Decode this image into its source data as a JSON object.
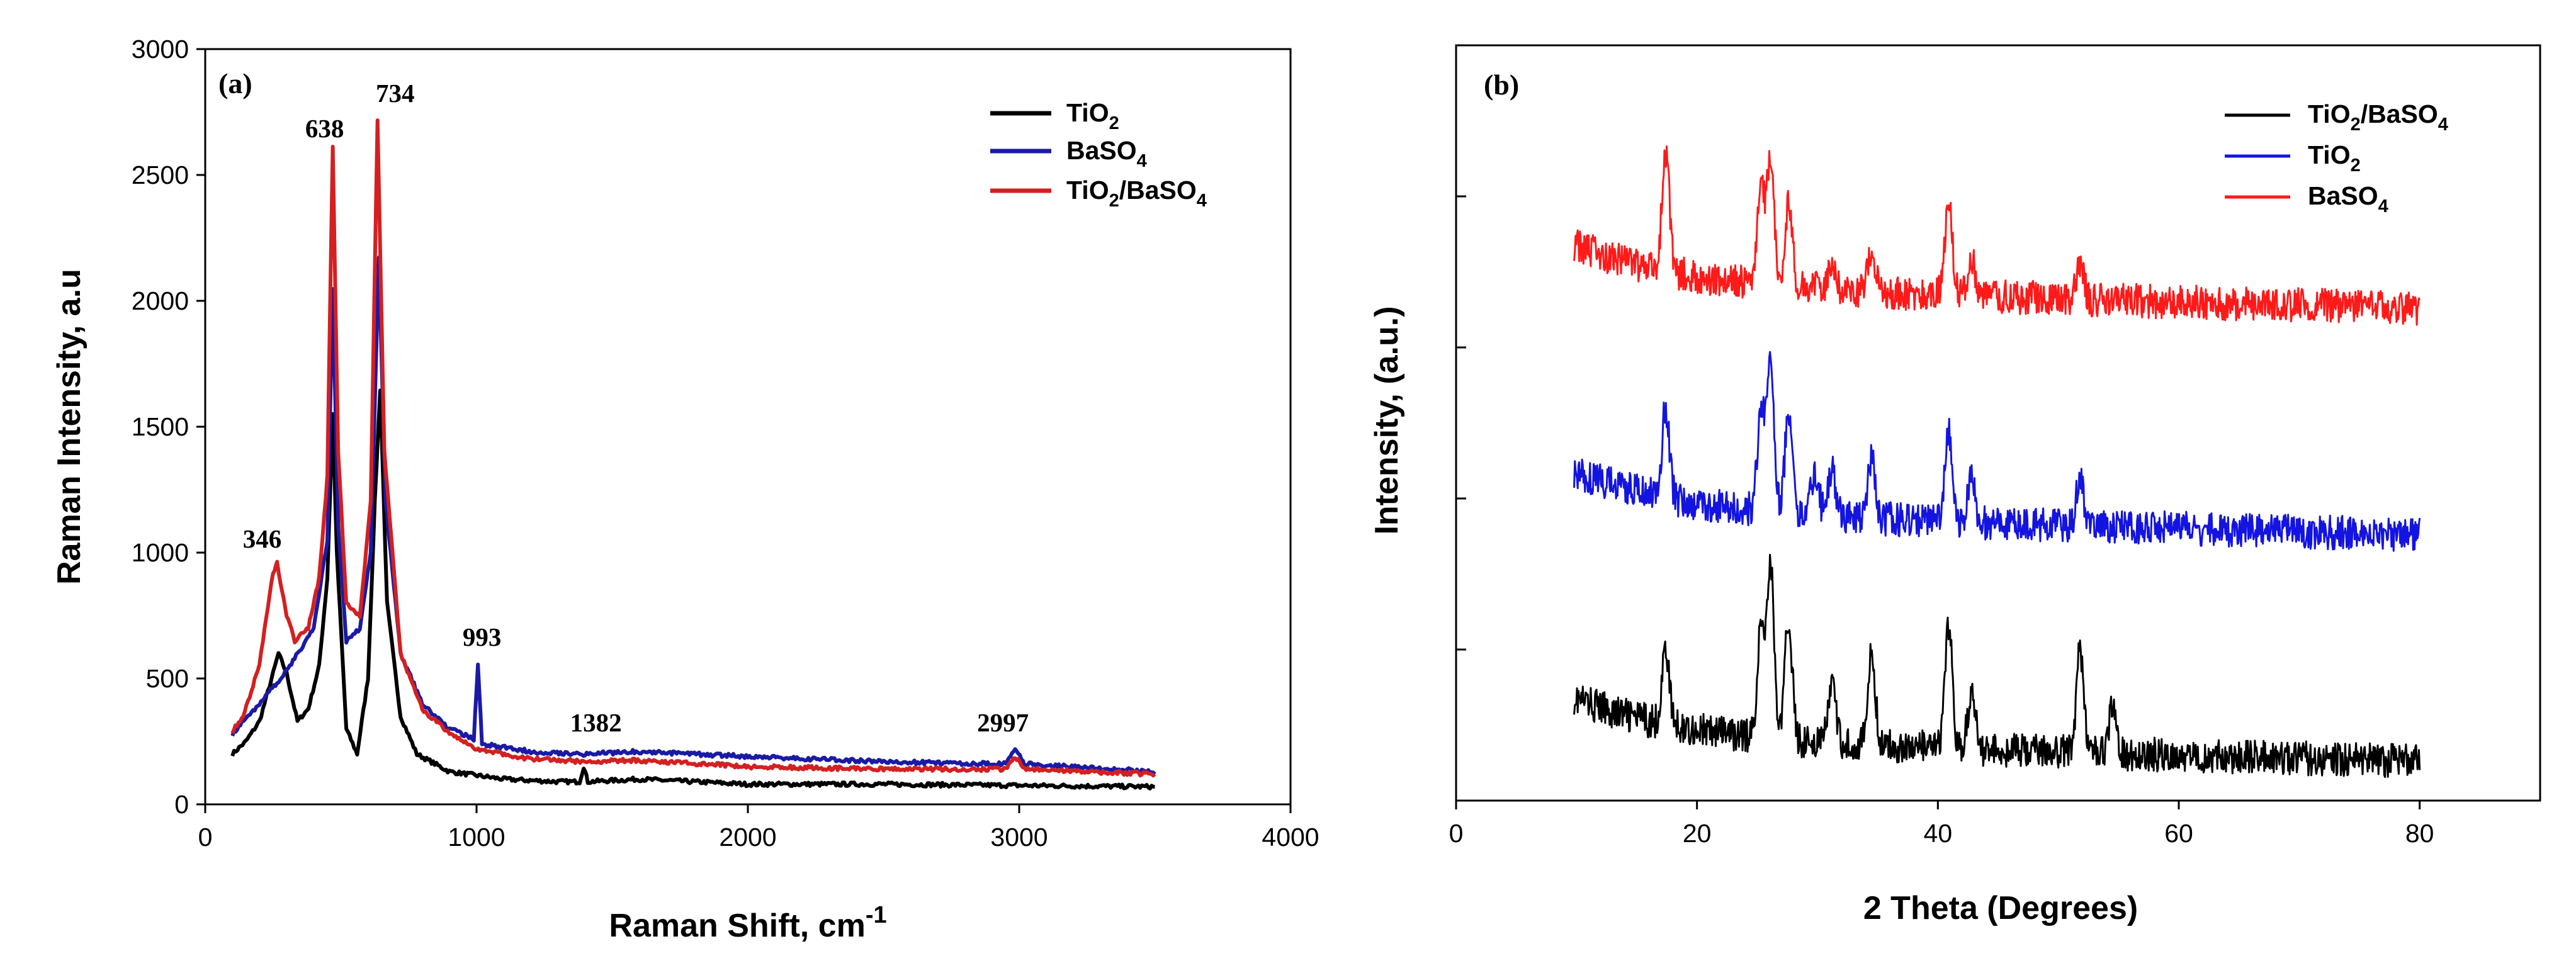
{
  "chart_data": [
    {
      "panel": "(a)",
      "type": "line",
      "title": "",
      "xlabel": "Raman Shift, cm",
      "xlabel_sup": "-1",
      "ylabel": "Raman Intensity, a.u",
      "xlim": [
        0,
        4000
      ],
      "ylim": [
        0,
        3000
      ],
      "xticks": [
        "0",
        "1000",
        "2000",
        "3000",
        "4000"
      ],
      "yticks": [
        "0",
        "500",
        "1000",
        "1500",
        "2000",
        "2500",
        "3000"
      ],
      "grid": false,
      "legend_position": "top-right",
      "annotations": [
        {
          "text": "346",
          "x": 210,
          "y": 1020
        },
        {
          "text": "638",
          "x": 440,
          "y": 2650
        },
        {
          "text": "734",
          "x": 700,
          "y": 2790
        },
        {
          "text": "993",
          "x": 1020,
          "y": 630
        },
        {
          "text": "1382",
          "x": 1440,
          "y": 290
        },
        {
          "text": "2997",
          "x": 2940,
          "y": 290
        }
      ],
      "series": [
        {
          "name": "TiO2",
          "legend_main": "TiO",
          "legend_sub": "2",
          "legend_tail": "",
          "color": "#000000",
          "points": [
            [
              100,
              200
            ],
            [
              150,
              250
            ],
            [
              200,
              330
            ],
            [
              250,
              520
            ],
            [
              270,
              600
            ],
            [
              300,
              520
            ],
            [
              340,
              330
            ],
            [
              380,
              380
            ],
            [
              420,
              550
            ],
            [
              450,
              900
            ],
            [
              470,
              1550
            ],
            [
              485,
              1000
            ],
            [
              520,
              300
            ],
            [
              560,
              200
            ],
            [
              600,
              500
            ],
            [
              625,
              1200
            ],
            [
              645,
              1650
            ],
            [
              670,
              800
            ],
            [
              720,
              350
            ],
            [
              780,
              200
            ],
            [
              900,
              130
            ],
            [
              1100,
              100
            ],
            [
              1300,
              90
            ],
            [
              1380,
              90
            ],
            [
              1395,
              150
            ],
            [
              1410,
              90
            ],
            [
              1600,
              100
            ],
            [
              2000,
              80
            ],
            [
              2500,
              80
            ],
            [
              3000,
              75
            ],
            [
              3500,
              70
            ]
          ]
        },
        {
          "name": "BaSO4",
          "legend_main": "BaSO",
          "legend_sub": "4",
          "legend_tail": "",
          "color": "#1a1aa6",
          "points": [
            [
              100,
              280
            ],
            [
              200,
              400
            ],
            [
              300,
              530
            ],
            [
              400,
              700
            ],
            [
              450,
              1050
            ],
            [
              470,
              2050
            ],
            [
              490,
              1100
            ],
            [
              520,
              650
            ],
            [
              570,
              700
            ],
            [
              610,
              1000
            ],
            [
              640,
              2170
            ],
            [
              665,
              1200
            ],
            [
              720,
              600
            ],
            [
              800,
              400
            ],
            [
              900,
              300
            ],
            [
              990,
              260
            ],
            [
              1005,
              560
            ],
            [
              1020,
              240
            ],
            [
              1200,
              210
            ],
            [
              1400,
              200
            ],
            [
              1600,
              210
            ],
            [
              2000,
              190
            ],
            [
              2500,
              170
            ],
            [
              2950,
              160
            ],
            [
              2985,
              220
            ],
            [
              3020,
              160
            ],
            [
              3500,
              130
            ]
          ]
        },
        {
          "name": "TiO2/BaSO4",
          "legend_main": "TiO",
          "legend_sub": "2",
          "legend_tail": "/BaSO",
          "legend_sub2": "4",
          "color": "#d42020",
          "points": [
            [
              100,
              290
            ],
            [
              140,
              350
            ],
            [
              170,
              450
            ],
            [
              200,
              560
            ],
            [
              250,
              920
            ],
            [
              265,
              960
            ],
            [
              300,
              750
            ],
            [
              330,
              650
            ],
            [
              380,
              700
            ],
            [
              420,
              900
            ],
            [
              450,
              1300
            ],
            [
              470,
              2620
            ],
            [
              490,
              1400
            ],
            [
              520,
              800
            ],
            [
              570,
              750
            ],
            [
              610,
              1200
            ],
            [
              635,
              2720
            ],
            [
              660,
              1400
            ],
            [
              720,
              600
            ],
            [
              800,
              380
            ],
            [
              900,
              280
            ],
            [
              1000,
              220
            ],
            [
              1200,
              180
            ],
            [
              1400,
              170
            ],
            [
              1600,
              175
            ],
            [
              2000,
              150
            ],
            [
              2500,
              140
            ],
            [
              2950,
              140
            ],
            [
              2985,
              190
            ],
            [
              3020,
              140
            ],
            [
              3500,
              120
            ]
          ]
        }
      ]
    },
    {
      "panel": "(b)",
      "type": "line",
      "title": "",
      "xlabel": "2 Theta (Degrees)",
      "ylabel": "Intensity, (a.u.)",
      "xlim": [
        0,
        90
      ],
      "ylim": [
        0,
        10
      ],
      "xticks": [
        "0",
        "20",
        "40",
        "60",
        "80"
      ],
      "ytick_values": [
        2,
        4,
        6,
        8
      ],
      "grid": false,
      "legend_position": "top-right",
      "series": [
        {
          "name": "TiO2/BaSO4",
          "legend_main": "TiO",
          "legend_sub": "2",
          "legend_tail": "/BaSO",
          "legend_sub2": "4",
          "color": "#000000",
          "offset": 0.8,
          "peaks": [
            [
              17.4,
              1.0
            ],
            [
              25.3,
              1.4
            ],
            [
              26.1,
              2.3
            ],
            [
              27.6,
              1.6
            ],
            [
              31.2,
              0.8
            ],
            [
              34.5,
              1.2
            ],
            [
              40.9,
              1.6
            ],
            [
              42.8,
              0.8
            ],
            [
              51.8,
              1.4
            ],
            [
              54.5,
              0.6
            ]
          ]
        },
        {
          "name": "TiO2",
          "legend_main": "TiO",
          "legend_sub": "2",
          "legend_tail": "",
          "color": "#1414e0",
          "offset": 3.8,
          "peaks": [
            [
              17.4,
              1.2
            ],
            [
              25.3,
              1.3
            ],
            [
              26.1,
              2.1
            ],
            [
              27.6,
              1.3
            ],
            [
              29.8,
              0.6
            ],
            [
              31.2,
              0.6
            ],
            [
              34.5,
              0.8
            ],
            [
              40.9,
              1.2
            ],
            [
              42.8,
              0.6
            ],
            [
              51.8,
              0.7
            ]
          ]
        },
        {
          "name": "BaSO4",
          "legend_main": "BaSO",
          "legend_sub": "4",
          "legend_tail": "",
          "color": "#ff1a1a",
          "offset": 6.8,
          "peaks": [
            [
              17.4,
              1.6
            ],
            [
              25.3,
              1.2
            ],
            [
              26.1,
              1.7
            ],
            [
              27.6,
              1.1
            ],
            [
              31.2,
              0.4
            ],
            [
              34.5,
              0.5
            ],
            [
              40.9,
              1.2
            ],
            [
              42.8,
              0.5
            ],
            [
              51.8,
              0.5
            ]
          ]
        }
      ]
    }
  ]
}
